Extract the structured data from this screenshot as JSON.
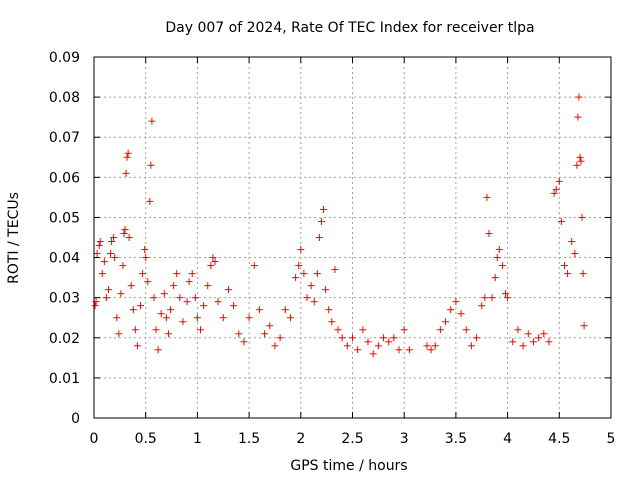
{
  "chart_data": {
    "type": "scatter",
    "title": "Day 007 of 2024, Rate Of TEC Index for receiver tlpa",
    "xlabel": "GPS time / hours",
    "ylabel": "ROTI / TECUs",
    "xlim": [
      0,
      5
    ],
    "ylim": [
      0,
      0.09
    ],
    "x_ticks": [
      0,
      0.5,
      1,
      1.5,
      2,
      2.5,
      3,
      3.5,
      4,
      4.5,
      5
    ],
    "x_tick_labels": [
      "0",
      "0.5",
      "1",
      "1.5",
      "2",
      "2.5",
      "3",
      "3.5",
      "4",
      "4.5",
      "5"
    ],
    "y_ticks": [
      0,
      0.01,
      0.02,
      0.03,
      0.04,
      0.05,
      0.06,
      0.07,
      0.08,
      0.09
    ],
    "y_tick_labels": [
      "0",
      "0.01",
      "0.02",
      "0.03",
      "0.04",
      "0.05",
      "0.06",
      "0.07",
      "0.08",
      "0.09"
    ],
    "grid": true,
    "marker": "plus",
    "color": "#ff0000",
    "series": [
      {
        "name": "ROTI",
        "points": [
          [
            0.01,
            0.028
          ],
          [
            0.02,
            0.029
          ],
          [
            0.03,
            0.041
          ],
          [
            0.05,
            0.043
          ],
          [
            0.06,
            0.044
          ],
          [
            0.08,
            0.036
          ],
          [
            0.1,
            0.039
          ],
          [
            0.12,
            0.03
          ],
          [
            0.14,
            0.032
          ],
          [
            0.16,
            0.041
          ],
          [
            0.17,
            0.044
          ],
          [
            0.19,
            0.045
          ],
          [
            0.2,
            0.04
          ],
          [
            0.22,
            0.025
          ],
          [
            0.24,
            0.021
          ],
          [
            0.26,
            0.031
          ],
          [
            0.28,
            0.038
          ],
          [
            0.29,
            0.046
          ],
          [
            0.3,
            0.047
          ],
          [
            0.31,
            0.061
          ],
          [
            0.32,
            0.065
          ],
          [
            0.33,
            0.066
          ],
          [
            0.34,
            0.045
          ],
          [
            0.36,
            0.033
          ],
          [
            0.38,
            0.027
          ],
          [
            0.4,
            0.022
          ],
          [
            0.42,
            0.018
          ],
          [
            0.45,
            0.028
          ],
          [
            0.47,
            0.036
          ],
          [
            0.49,
            0.042
          ],
          [
            0.5,
            0.04
          ],
          [
            0.52,
            0.034
          ],
          [
            0.54,
            0.054
          ],
          [
            0.55,
            0.063
          ],
          [
            0.56,
            0.074
          ],
          [
            0.58,
            0.03
          ],
          [
            0.6,
            0.022
          ],
          [
            0.62,
            0.017
          ],
          [
            0.65,
            0.026
          ],
          [
            0.68,
            0.031
          ],
          [
            0.7,
            0.025
          ],
          [
            0.72,
            0.021
          ],
          [
            0.74,
            0.027
          ],
          [
            0.77,
            0.033
          ],
          [
            0.8,
            0.036
          ],
          [
            0.83,
            0.03
          ],
          [
            0.86,
            0.024
          ],
          [
            0.9,
            0.029
          ],
          [
            0.92,
            0.034
          ],
          [
            0.95,
            0.036
          ],
          [
            0.98,
            0.03
          ],
          [
            1.0,
            0.025
          ],
          [
            1.03,
            0.022
          ],
          [
            1.06,
            0.028
          ],
          [
            1.1,
            0.033
          ],
          [
            1.13,
            0.038
          ],
          [
            1.15,
            0.04
          ],
          [
            1.17,
            0.039
          ],
          [
            1.2,
            0.029
          ],
          [
            1.25,
            0.025
          ],
          [
            1.3,
            0.032
          ],
          [
            1.35,
            0.028
          ],
          [
            1.4,
            0.021
          ],
          [
            1.45,
            0.019
          ],
          [
            1.5,
            0.025
          ],
          [
            1.55,
            0.038
          ],
          [
            1.6,
            0.027
          ],
          [
            1.65,
            0.021
          ],
          [
            1.7,
            0.023
          ],
          [
            1.75,
            0.018
          ],
          [
            1.8,
            0.02
          ],
          [
            1.85,
            0.027
          ],
          [
            1.9,
            0.025
          ],
          [
            1.95,
            0.035
          ],
          [
            1.98,
            0.038
          ],
          [
            2.0,
            0.042
          ],
          [
            2.03,
            0.036
          ],
          [
            2.06,
            0.03
          ],
          [
            2.1,
            0.033
          ],
          [
            2.13,
            0.029
          ],
          [
            2.16,
            0.036
          ],
          [
            2.18,
            0.045
          ],
          [
            2.2,
            0.049
          ],
          [
            2.22,
            0.052
          ],
          [
            2.24,
            0.032
          ],
          [
            2.27,
            0.027
          ],
          [
            2.3,
            0.024
          ],
          [
            2.33,
            0.037
          ],
          [
            2.36,
            0.022
          ],
          [
            2.4,
            0.02
          ],
          [
            2.45,
            0.018
          ],
          [
            2.5,
            0.02
          ],
          [
            2.55,
            0.017
          ],
          [
            2.6,
            0.022
          ],
          [
            2.65,
            0.019
          ],
          [
            2.7,
            0.016
          ],
          [
            2.75,
            0.018
          ],
          [
            2.8,
            0.02
          ],
          [
            2.85,
            0.019
          ],
          [
            2.9,
            0.02
          ],
          [
            2.95,
            0.017
          ],
          [
            3.0,
            0.022
          ],
          [
            3.05,
            0.017
          ],
          [
            3.22,
            0.018
          ],
          [
            3.26,
            0.017
          ],
          [
            3.3,
            0.018
          ],
          [
            3.35,
            0.022
          ],
          [
            3.4,
            0.024
          ],
          [
            3.45,
            0.027
          ],
          [
            3.5,
            0.029
          ],
          [
            3.55,
            0.026
          ],
          [
            3.6,
            0.022
          ],
          [
            3.65,
            0.018
          ],
          [
            3.7,
            0.02
          ],
          [
            3.75,
            0.028
          ],
          [
            3.78,
            0.03
          ],
          [
            3.8,
            0.055
          ],
          [
            3.82,
            0.046
          ],
          [
            3.85,
            0.03
          ],
          [
            3.88,
            0.035
          ],
          [
            3.9,
            0.04
          ],
          [
            3.92,
            0.042
          ],
          [
            3.95,
            0.038
          ],
          [
            3.98,
            0.031
          ],
          [
            4.0,
            0.03
          ],
          [
            4.05,
            0.019
          ],
          [
            4.1,
            0.022
          ],
          [
            4.15,
            0.018
          ],
          [
            4.2,
            0.021
          ],
          [
            4.25,
            0.019
          ],
          [
            4.3,
            0.02
          ],
          [
            4.35,
            0.021
          ],
          [
            4.4,
            0.019
          ],
          [
            4.45,
            0.056
          ],
          [
            4.47,
            0.057
          ],
          [
            4.5,
            0.059
          ],
          [
            4.52,
            0.049
          ],
          [
            4.55,
            0.038
          ],
          [
            4.58,
            0.036
          ],
          [
            4.62,
            0.044
          ],
          [
            4.65,
            0.041
          ],
          [
            4.67,
            0.063
          ],
          [
            4.68,
            0.075
          ],
          [
            4.69,
            0.08
          ],
          [
            4.7,
            0.065
          ],
          [
            4.71,
            0.064
          ],
          [
            4.72,
            0.05
          ],
          [
            4.73,
            0.036
          ],
          [
            4.74,
            0.023
          ]
        ]
      }
    ]
  }
}
